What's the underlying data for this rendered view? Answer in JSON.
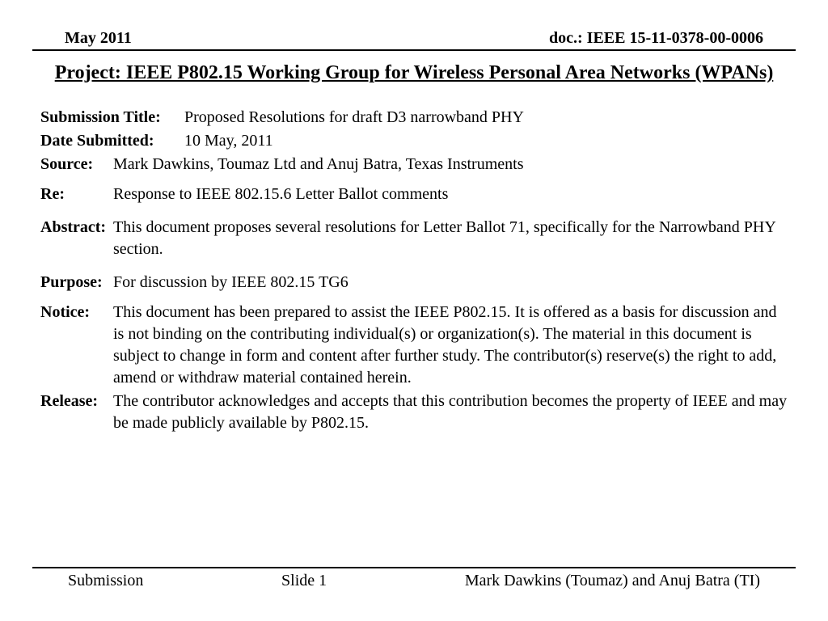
{
  "header": {
    "left": "May 2011",
    "right": "doc.: IEEE 15-11-0378-00-0006"
  },
  "title": "Project: IEEE P802.15 Working Group for Wireless Personal Area Networks (WPANs)",
  "fields": {
    "submission_title_label": "Submission Title:",
    "submission_title_value": "Proposed Resolutions for draft D3 narrowband PHY",
    "date_submitted_label": "Date Submitted:",
    "date_submitted_value": "10 May, 2011",
    "source_label": "Source:",
    "source_value": "Mark Dawkins, Toumaz Ltd and Anuj Batra, Texas Instruments",
    "re_label": "Re:",
    "re_value": "Response to IEEE 802.15.6 Letter Ballot comments",
    "abstract_label": "Abstract:",
    "abstract_value": "This document proposes several resolutions for Letter Ballot 71, specifically for the Narrowband PHY section.",
    "purpose_label": "Purpose:",
    "purpose_value": "For discussion by IEEE 802.15 TG6",
    "notice_label": "Notice:",
    "notice_value": "This document has been prepared to assist the IEEE P802.15.  It is offered as a basis for discussion and is not binding on the contributing individual(s) or organization(s). The material in this document is subject to change in form and content after further study. The contributor(s) reserve(s) the right to add, amend or withdraw material contained herein.",
    "release_label": "Release:",
    "release_value": "The contributor acknowledges and accepts that this contribution becomes the property of IEEE and may be made publicly available by P802.15."
  },
  "footer": {
    "left": "Submission",
    "center": "Slide 1",
    "right": "Mark Dawkins (Toumaz) and Anuj Batra (TI)"
  },
  "style": {
    "background_color": "#ffffff",
    "text_color": "#000000",
    "rule_color": "#000000",
    "title_fontsize": 24,
    "body_fontsize": 20,
    "header_fontsize": 20,
    "footer_fontsize": 20,
    "font_family": "Times New Roman"
  }
}
